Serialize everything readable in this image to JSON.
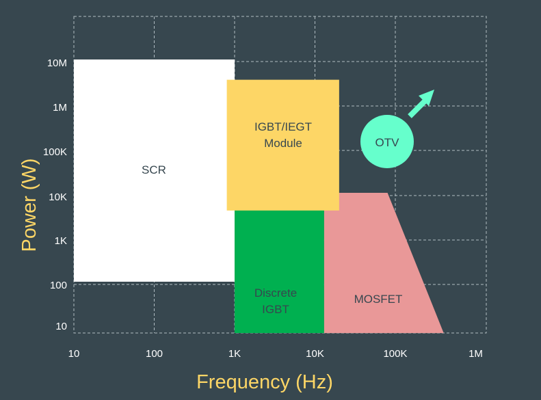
{
  "axes": {
    "x_title": "Frequency (Hz)",
    "y_title": "Power (W)",
    "x_ticks": [
      "10",
      "100",
      "1K",
      "10K",
      "100K",
      "1M"
    ],
    "y_ticks": [
      "10M",
      "1M",
      "100K",
      "10K",
      "1K",
      "100",
      "10"
    ]
  },
  "regions": [
    {
      "name": "scr",
      "label_lines": [
        "SCR"
      ],
      "color": "#ffffff",
      "polygon": [
        [
          10,
          10000000
        ],
        [
          1000,
          10000000
        ],
        [
          1000,
          100
        ],
        [
          10,
          100
        ]
      ]
    },
    {
      "name": "discrete-igbt",
      "label_lines": [
        "Discrete",
        "IGBT"
      ],
      "color": "#00b050",
      "polygon": [
        [
          1000,
          5000
        ],
        [
          13000,
          5000
        ],
        [
          13000,
          7
        ],
        [
          1000,
          7
        ]
      ]
    },
    {
      "name": "mosfet",
      "label_lines": [
        "MOSFET"
      ],
      "color": "#e99898",
      "polygon": [
        [
          13000,
          10000
        ],
        [
          80000,
          10000
        ],
        [
          400000,
          7
        ],
        [
          13000,
          7
        ]
      ]
    },
    {
      "name": "igbt-iegt-module",
      "label_lines": [
        "IGBT/IEGT",
        "Module"
      ],
      "color": "#fdd666",
      "polygon": [
        [
          800,
          3500000
        ],
        [
          20000,
          3500000
        ],
        [
          20000,
          4000
        ],
        [
          800,
          4000
        ]
      ]
    }
  ],
  "otv": {
    "label": "OTV",
    "color": "#66ffcc",
    "center": [
      110000,
      300000
    ],
    "arrow": {
      "color": "#66ffcc",
      "from": [
        230000,
        1000000
      ],
      "to": [
        400000,
        3000000
      ]
    }
  }
}
